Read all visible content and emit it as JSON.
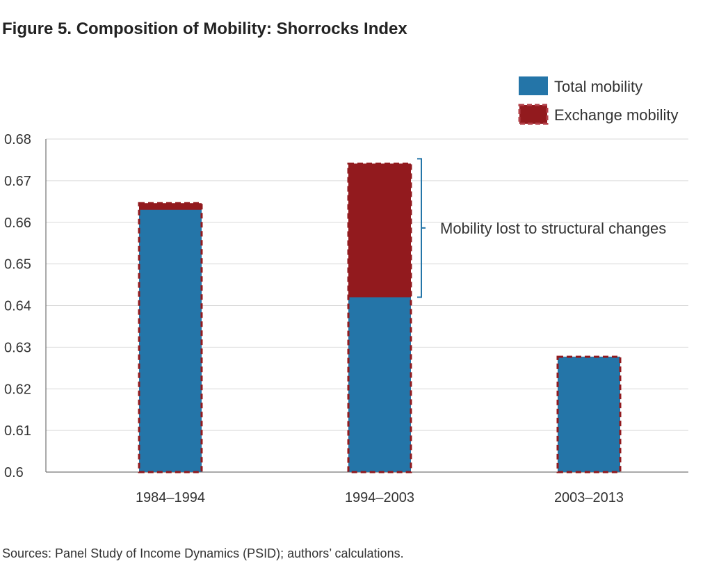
{
  "title": "Figure 5. Composition of Mobility: Shorrocks Index",
  "source": "Sources: Panel Study of Income Dynamics (PSID); authors’ calculations.",
  "colors": {
    "total": "#2475a8",
    "exchange": "#921a1e",
    "grid": "#d9d9d9"
  },
  "chart_data": {
    "type": "bar",
    "title": "Figure 5. Composition of Mobility: Shorrocks Index",
    "categories": [
      "1984–1994",
      "1994–2003",
      "2003–2013"
    ],
    "series": [
      {
        "name": "Total mobility",
        "values": [
          0.663,
          0.642,
          0.6277
        ]
      },
      {
        "name": "Exchange mobility",
        "values": [
          0.6646,
          0.6741,
          0.6277
        ]
      }
    ],
    "ylim": [
      0.6,
      0.68
    ],
    "yticks": [
      "0.6",
      "0.61",
      "0.62",
      "0.63",
      "0.64",
      "0.65",
      "0.66",
      "0.67",
      "0.68"
    ],
    "grid": true,
    "legend": "top-right",
    "annotation": "Mobility lost to structural changes"
  }
}
